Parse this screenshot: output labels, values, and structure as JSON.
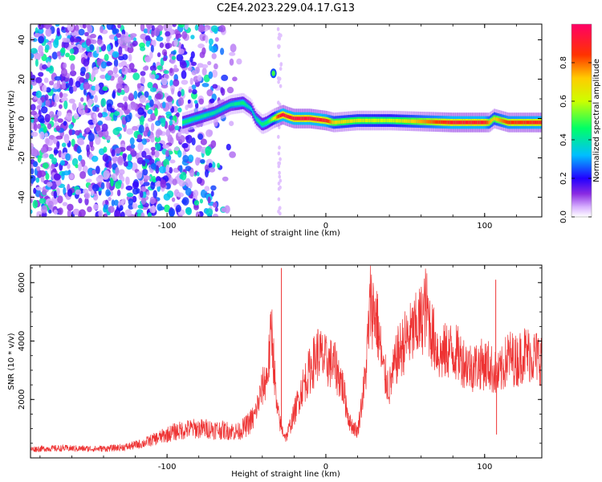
{
  "figure_title": "C2E4.2023.229.04.17.G13",
  "chart_data": [
    {
      "type": "heatmap",
      "title": "",
      "xlabel": "Height of straight line (km)",
      "ylabel": "Frequency (Hz)",
      "xlim": [
        -186,
        136
      ],
      "ylim": [
        -50,
        48
      ],
      "x_ticks": [
        -100,
        0,
        100
      ],
      "y_ticks": [
        -40,
        -20,
        0,
        20,
        40
      ],
      "grid": false,
      "colorbar": {
        "label": "Normalized spectral amplitude",
        "range": [
          0.0,
          1.0
        ],
        "ticks": [
          0.0,
          0.2,
          0.4,
          0.6,
          0.8
        ],
        "colormap": [
          "#ffffff",
          "#d9b3ff",
          "#8a2be2",
          "#2200ff",
          "#00bfff",
          "#00ff66",
          "#ccff00",
          "#ffcc00",
          "#ff3300",
          "#ff0066"
        ]
      },
      "ridge": {
        "x": [
          -90,
          -70,
          -60,
          -52,
          -47,
          -44,
          -40,
          -37,
          -33,
          -30,
          -27,
          -24,
          -20,
          -10,
          0,
          5,
          20,
          40,
          60,
          80,
          100,
          103,
          106,
          115,
          136
        ],
        "y": [
          -2,
          3,
          7,
          8,
          5,
          0,
          -3,
          -2,
          0,
          1,
          2,
          1,
          0,
          0,
          -1,
          -2,
          -1,
          -1,
          -1.5,
          -2,
          -2,
          -2,
          0,
          -2,
          -2
        ],
        "amplitude": [
          0.45,
          0.4,
          0.4,
          0.45,
          0.35,
          0.4,
          0.45,
          0.45,
          0.6,
          0.85,
          0.95,
          0.9,
          0.95,
          0.95,
          0.9,
          0.7,
          0.65,
          0.6,
          0.75,
          0.92,
          0.92,
          0.75,
          0.7,
          0.85,
          0.9
        ]
      },
      "noise_region": {
        "x": [
          -186,
          -52
        ],
        "amplitude_range": [
          0.05,
          0.45
        ]
      },
      "secondary_features": [
        {
          "x": -33,
          "y": 23,
          "amplitude": 0.5
        }
      ]
    },
    {
      "type": "line",
      "title": "",
      "xlabel": "Height of straight line (km)",
      "ylabel": "SNR (10 * v/v)",
      "xlim": [
        -186,
        136
      ],
      "ylim": [
        0,
        6600
      ],
      "x_ticks": [
        -100,
        0,
        100
      ],
      "y_ticks": [
        2000,
        4000,
        6000
      ],
      "grid": false,
      "series": [
        {
          "color": "#ee3333",
          "x": [
            -186,
            -175,
            -165,
            -155,
            -145,
            -135,
            -125,
            -115,
            -105,
            -95,
            -85,
            -75,
            -65,
            -55,
            -50,
            -45,
            -40,
            -37,
            -34,
            -31,
            -28,
            -25,
            -20,
            -15,
            -10,
            -5,
            0,
            5,
            10,
            15,
            20,
            25,
            28,
            32,
            36,
            40,
            45,
            50,
            55,
            60,
            63,
            67,
            72,
            77,
            82,
            87,
            92,
            97,
            102,
            105,
            108,
            111,
            115,
            120,
            125,
            130,
            136
          ],
          "values": [
            300,
            320,
            330,
            320,
            310,
            330,
            380,
            500,
            700,
            900,
            1000,
            1000,
            950,
            900,
            1100,
            1400,
            2400,
            2800,
            4400,
            1700,
            1000,
            700,
            1500,
            2400,
            3000,
            3600,
            3300,
            3200,
            2600,
            1200,
            900,
            2800,
            5300,
            4800,
            3000,
            2400,
            3500,
            4000,
            4300,
            4700,
            5200,
            4200,
            3500,
            3700,
            3600,
            3300,
            3100,
            3200,
            3200,
            3000,
            2800,
            3000,
            3500,
            3300,
            3600,
            3500,
            3400
          ]
        }
      ],
      "spikes": [
        {
          "x": -28,
          "value": 6500
        },
        {
          "x": 107,
          "value": 6100
        },
        {
          "x": 107.5,
          "value": 800
        }
      ]
    }
  ]
}
